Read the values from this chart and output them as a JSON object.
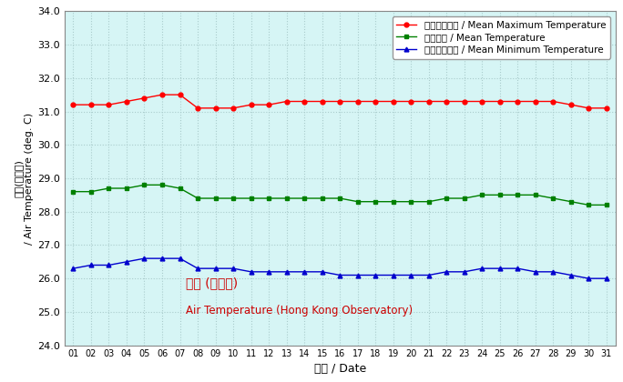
{
  "days": [
    1,
    2,
    3,
    4,
    5,
    6,
    7,
    8,
    9,
    10,
    11,
    12,
    13,
    14,
    15,
    16,
    17,
    18,
    19,
    20,
    21,
    22,
    23,
    24,
    25,
    26,
    27,
    28,
    29,
    30,
    31
  ],
  "mean_max": [
    31.2,
    31.2,
    31.2,
    31.3,
    31.4,
    31.5,
    31.5,
    31.1,
    31.1,
    31.1,
    31.2,
    31.2,
    31.3,
    31.3,
    31.3,
    31.3,
    31.3,
    31.3,
    31.3,
    31.3,
    31.3,
    31.3,
    31.3,
    31.3,
    31.3,
    31.3,
    31.3,
    31.3,
    31.2,
    31.1,
    31.1
  ],
  "mean_temp": [
    28.6,
    28.6,
    28.7,
    28.7,
    28.8,
    28.8,
    28.7,
    28.4,
    28.4,
    28.4,
    28.4,
    28.4,
    28.4,
    28.4,
    28.4,
    28.4,
    28.3,
    28.3,
    28.3,
    28.3,
    28.3,
    28.4,
    28.4,
    28.5,
    28.5,
    28.5,
    28.5,
    28.4,
    28.3,
    28.2,
    28.2
  ],
  "mean_min": [
    26.3,
    26.4,
    26.4,
    26.5,
    26.6,
    26.6,
    26.6,
    26.3,
    26.3,
    26.3,
    26.2,
    26.2,
    26.2,
    26.2,
    26.2,
    26.1,
    26.1,
    26.1,
    26.1,
    26.1,
    26.1,
    26.2,
    26.2,
    26.3,
    26.3,
    26.3,
    26.2,
    26.2,
    26.1,
    26.0,
    26.0
  ],
  "color_max": "#FF0000",
  "color_mean": "#008000",
  "color_min": "#0000CD",
  "legend_max": "平均最高氣溫 / Mean Maximum Temperature",
  "legend_mean": "平均氣溫 / Mean Temperature",
  "legend_min": "平均最低氣溫 / Mean Minimum Temperature",
  "xlabel": "日期 / Date",
  "ylabel_cn": "氣溫(攝氏度)",
  "ylabel_en": "/ Air Temperature (deg. C)",
  "annotation_cn": "氣溫 (天文台)",
  "annotation_en": "Air Temperature (Hong Kong Observatory)",
  "annotation_color": "#CC0000",
  "ylim_min": 24.0,
  "ylim_max": 34.0,
  "yticks": [
    24.0,
    25.0,
    26.0,
    27.0,
    28.0,
    29.0,
    30.0,
    31.0,
    32.0,
    33.0,
    34.0
  ],
  "bg_color": "#D6F5F5",
  "grid_color": "#AACCCC",
  "outer_bg": "#FFFFFF"
}
